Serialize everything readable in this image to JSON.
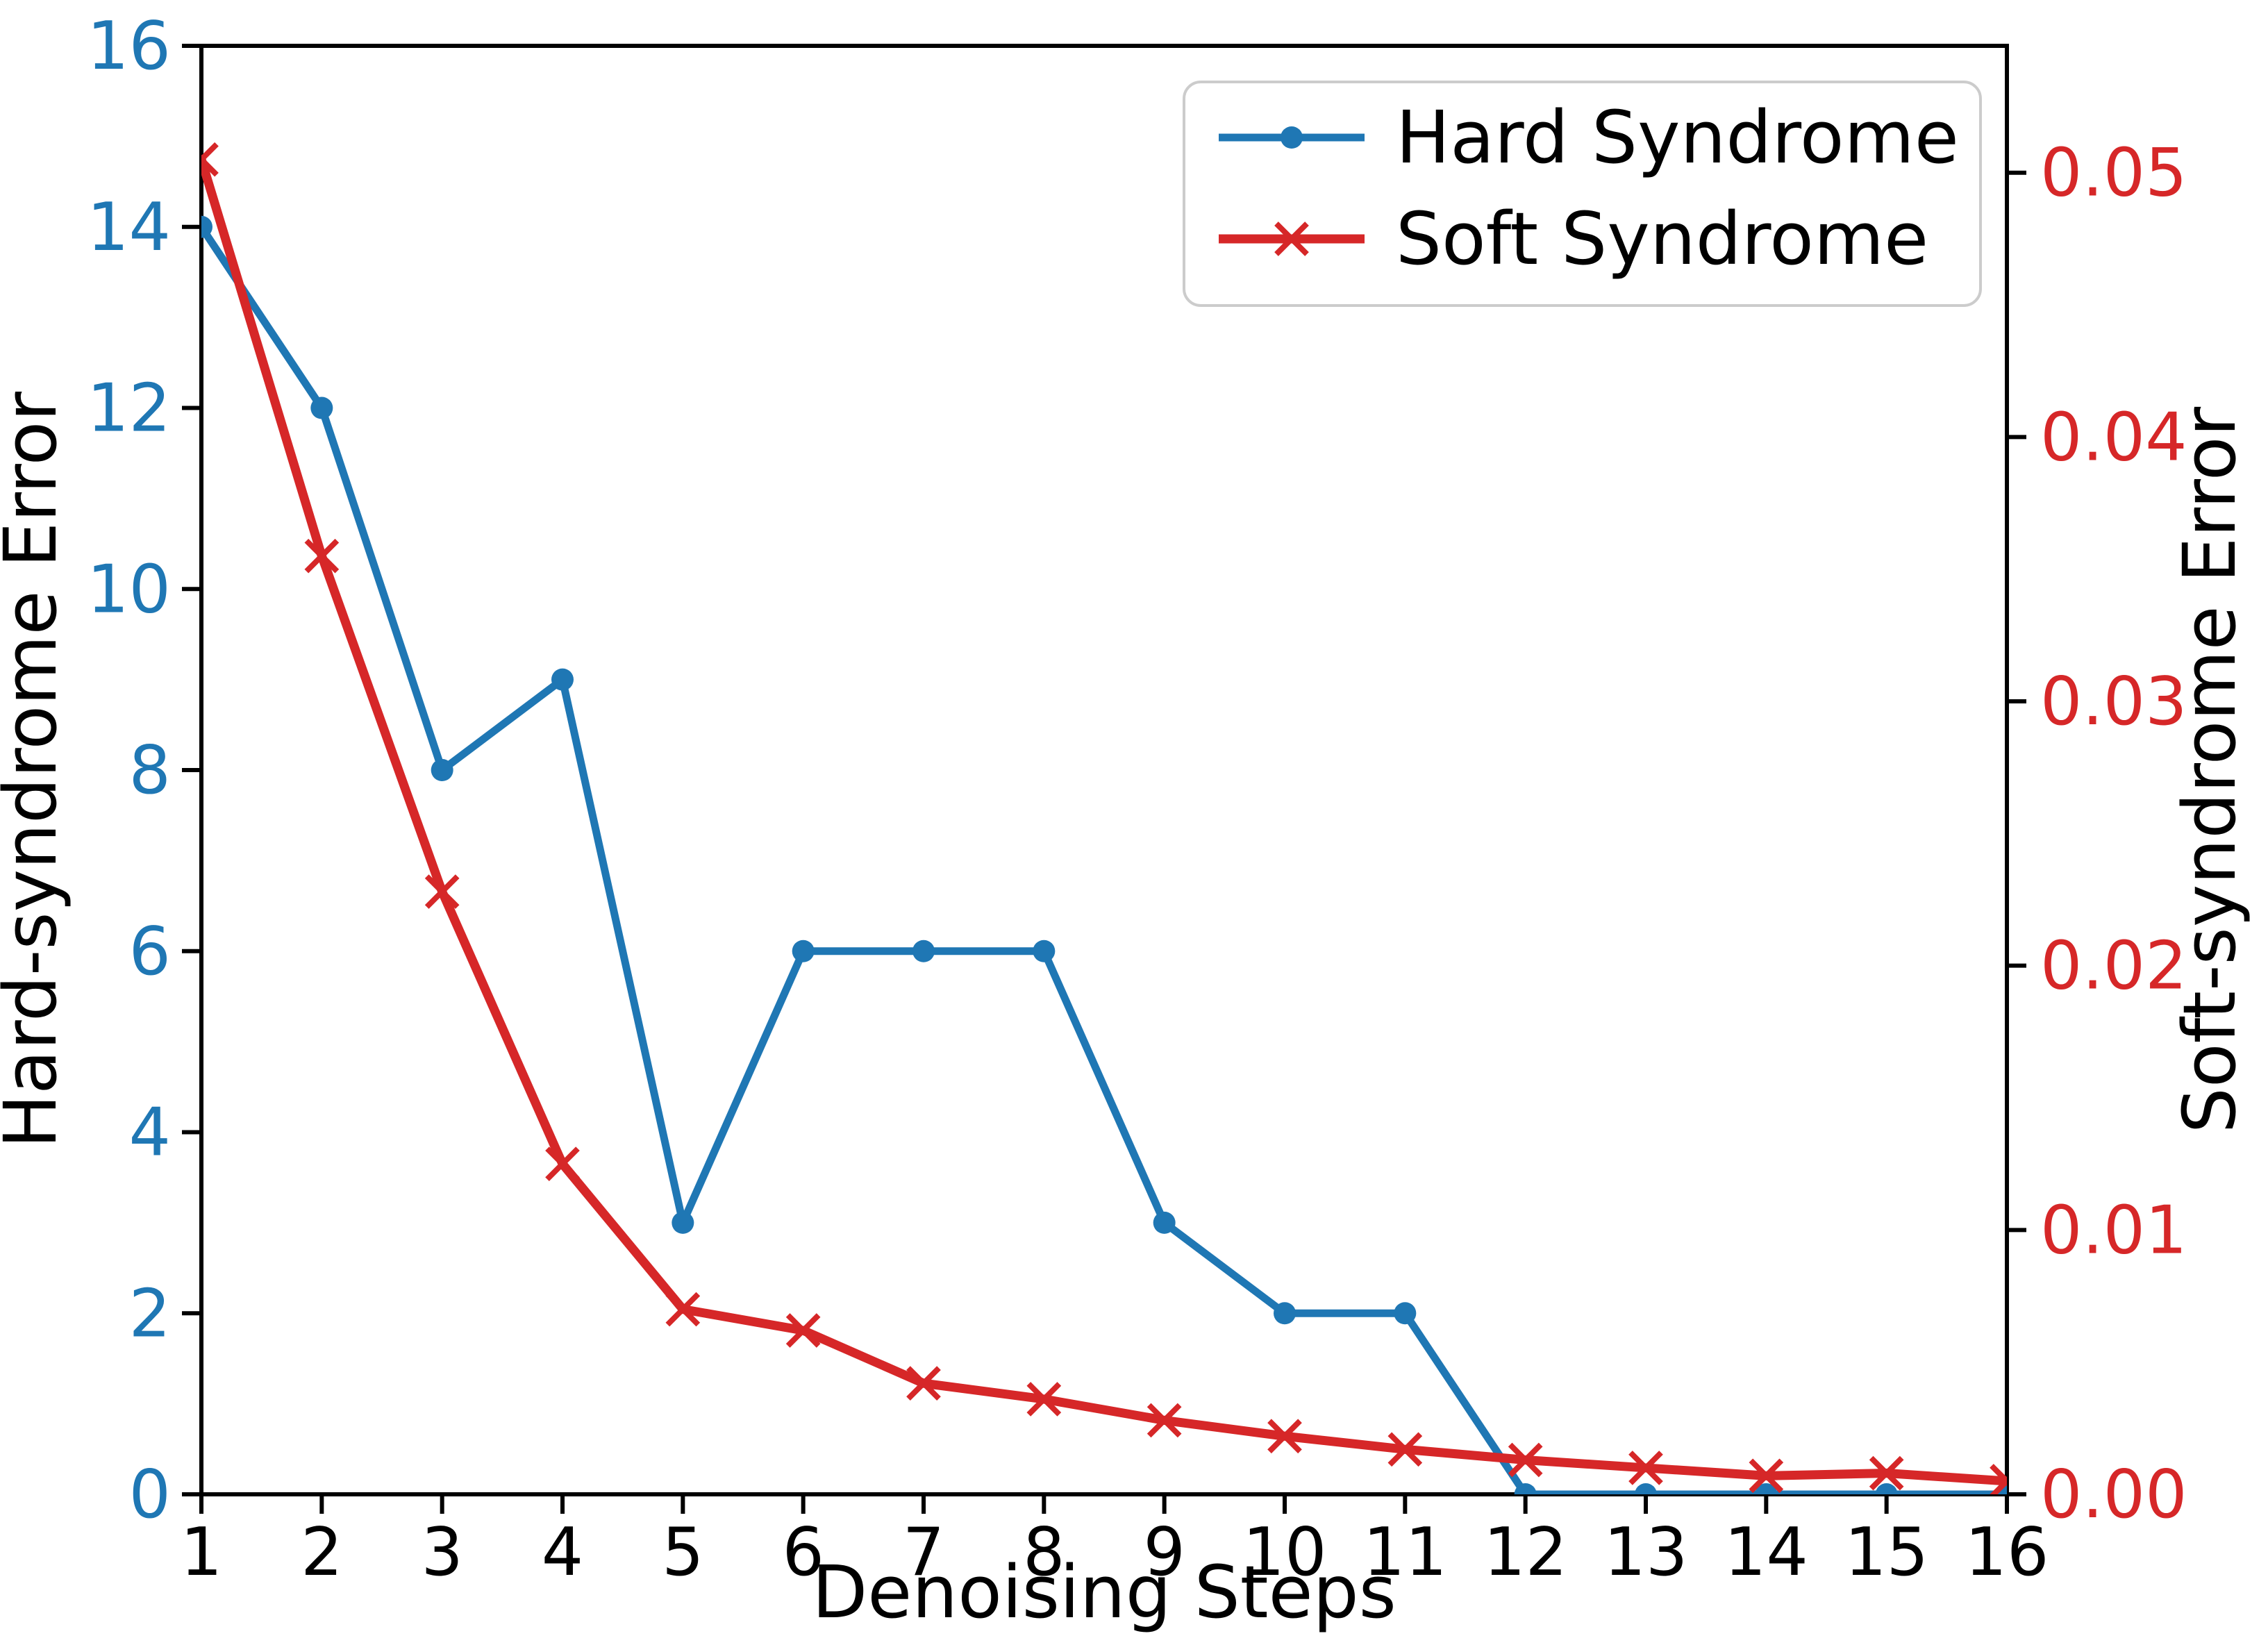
{
  "chart_data": {
    "type": "line",
    "title": "",
    "xlabel": "Denoising Steps",
    "x": [
      1,
      2,
      3,
      4,
      5,
      6,
      7,
      8,
      9,
      10,
      11,
      12,
      13,
      14,
      15,
      16
    ],
    "x_ticks": [
      "1",
      "2",
      "3",
      "4",
      "5",
      "6",
      "7",
      "8",
      "9",
      "10",
      "11",
      "12",
      "13",
      "14",
      "15",
      "16"
    ],
    "xlim": [
      1,
      16
    ],
    "grid": false,
    "left_axis": {
      "label": "Hard-syndrome Error",
      "ticks": [
        "0",
        "2",
        "4",
        "6",
        "8",
        "10",
        "12",
        "14",
        "16"
      ],
      "tick_values": [
        0,
        2,
        4,
        6,
        8,
        10,
        12,
        14,
        16
      ],
      "lim": [
        0,
        16
      ],
      "tick_color": "#1f77b4",
      "label_color": "#000000"
    },
    "right_axis": {
      "label": "Soft-syndrome Error",
      "ticks": [
        "0.00",
        "0.01",
        "0.02",
        "0.03",
        "0.04",
        "0.05"
      ],
      "tick_values": [
        0.0,
        0.01,
        0.02,
        0.03,
        0.04,
        0.05
      ],
      "lim": [
        0,
        0.0548
      ],
      "tick_color": "#d62728",
      "label_color": "#000000"
    },
    "series": [
      {
        "name": "Hard Syndrome",
        "axis": "left",
        "color": "#1f77b4",
        "marker": "circle",
        "values": [
          14,
          12,
          8,
          9,
          3,
          6,
          6,
          6,
          3,
          2,
          2,
          0,
          0,
          0,
          0,
          0
        ]
      },
      {
        "name": "Soft Syndrome",
        "axis": "right",
        "color": "#d62728",
        "marker": "x",
        "values": [
          0.0505,
          0.0355,
          0.0228,
          0.0125,
          0.007,
          0.0062,
          0.0042,
          0.0036,
          0.0028,
          0.0022,
          0.0017,
          0.0013,
          0.001,
          0.0007,
          0.0008,
          0.0005
        ]
      }
    ],
    "legend": {
      "position": "upper right",
      "entries": [
        {
          "label": "Hard Syndrome",
          "color": "#1f77b4",
          "marker": "circle"
        },
        {
          "label": "Soft Syndrome",
          "color": "#d62728",
          "marker": "x"
        }
      ]
    }
  }
}
